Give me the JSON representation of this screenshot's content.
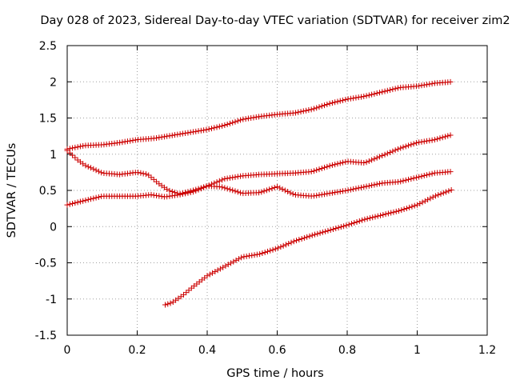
{
  "chart_data": {
    "type": "scatter",
    "title": "Day 028 of 2023, Sidereal Day-to-day VTEC variation (SDTVAR) for receiver zim2",
    "xlabel": "GPS time / hours",
    "ylabel": "SDTVAR / TECUs",
    "xlim": [
      0,
      1.2
    ],
    "ylim": [
      -1.5,
      2.5
    ],
    "xticks": [
      0,
      0.2,
      0.4,
      0.6,
      0.8,
      1,
      1.2
    ],
    "xtick_labels": [
      "0",
      "0.2",
      "0.4",
      "0.6",
      "0.8",
      "1",
      "1.2"
    ],
    "yticks": [
      -1.5,
      -1,
      -0.5,
      0,
      0.5,
      1,
      1.5,
      2,
      2.5
    ],
    "ytick_labels": [
      "-1.5",
      "-1",
      "-0.5",
      "0",
      "0.5",
      "1",
      "1.5",
      "2",
      "2.5"
    ],
    "grid": true,
    "marker": "+",
    "color": "#cc0000",
    "series": [
      {
        "name": "series-1",
        "x": [
          0.0,
          0.05,
          0.1,
          0.15,
          0.2,
          0.25,
          0.3,
          0.35,
          0.4,
          0.45,
          0.5,
          0.55,
          0.6,
          0.65,
          0.7,
          0.75,
          0.8,
          0.85,
          0.9,
          0.95,
          1.0,
          1.05,
          1.1
        ],
        "y": [
          1.07,
          1.12,
          1.13,
          1.16,
          1.2,
          1.22,
          1.26,
          1.3,
          1.34,
          1.4,
          1.48,
          1.52,
          1.55,
          1.57,
          1.62,
          1.7,
          1.76,
          1.8,
          1.86,
          1.92,
          1.94,
          1.98,
          2.0
        ]
      },
      {
        "name": "series-2",
        "x": [
          0.0,
          0.03,
          0.05,
          0.1,
          0.15,
          0.2,
          0.23,
          0.26,
          0.29,
          0.32,
          0.36,
          0.4,
          0.45,
          0.5,
          0.55,
          0.6,
          0.65,
          0.7,
          0.75,
          0.8,
          0.85,
          0.9,
          0.95,
          1.0,
          1.05,
          1.1
        ],
        "y": [
          1.05,
          0.92,
          0.85,
          0.74,
          0.72,
          0.75,
          0.72,
          0.6,
          0.5,
          0.45,
          0.5,
          0.56,
          0.66,
          0.7,
          0.72,
          0.73,
          0.74,
          0.76,
          0.84,
          0.9,
          0.88,
          0.98,
          1.08,
          1.16,
          1.2,
          1.27
        ]
      },
      {
        "name": "series-3",
        "x": [
          0.0,
          0.05,
          0.1,
          0.15,
          0.2,
          0.24,
          0.28,
          0.32,
          0.36,
          0.4,
          0.44,
          0.5,
          0.55,
          0.6,
          0.65,
          0.7,
          0.75,
          0.8,
          0.85,
          0.9,
          0.95,
          1.0,
          1.05,
          1.1
        ],
        "y": [
          0.3,
          0.36,
          0.42,
          0.42,
          0.42,
          0.44,
          0.41,
          0.44,
          0.48,
          0.56,
          0.55,
          0.46,
          0.47,
          0.55,
          0.44,
          0.42,
          0.46,
          0.5,
          0.55,
          0.6,
          0.62,
          0.68,
          0.74,
          0.76
        ]
      },
      {
        "name": "series-4",
        "x": [
          0.28,
          0.3,
          0.33,
          0.36,
          0.4,
          0.45,
          0.5,
          0.55,
          0.6,
          0.65,
          0.7,
          0.75,
          0.8,
          0.85,
          0.9,
          0.95,
          1.0,
          1.05,
          1.1
        ],
        "y": [
          -1.08,
          -1.05,
          -0.95,
          -0.83,
          -0.68,
          -0.55,
          -0.42,
          -0.38,
          -0.3,
          -0.2,
          -0.12,
          -0.05,
          0.02,
          0.1,
          0.16,
          0.22,
          0.3,
          0.42,
          0.51
        ]
      }
    ]
  }
}
